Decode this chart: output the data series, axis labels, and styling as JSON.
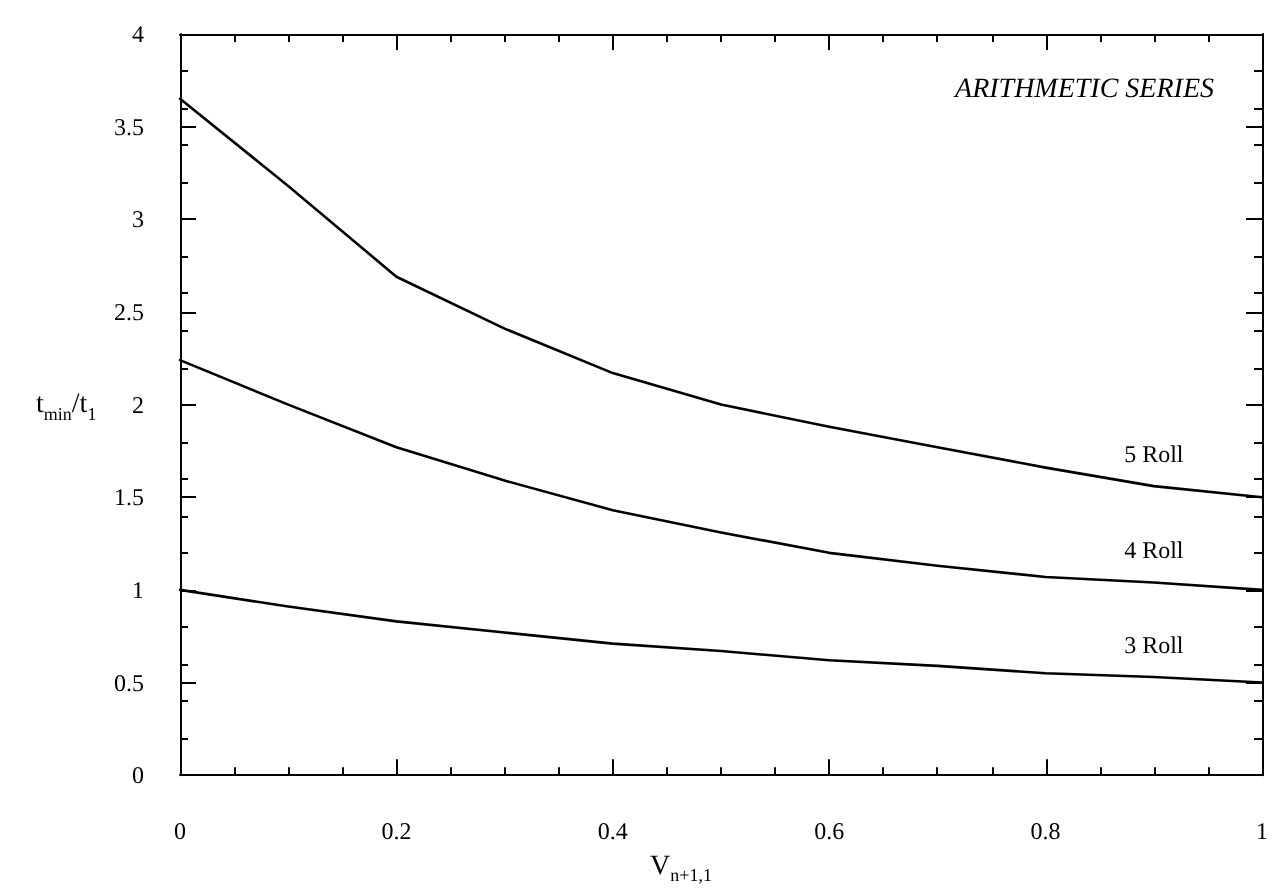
{
  "chart_data": {
    "type": "line",
    "xlabel": "V$_{n+1,1}$",
    "ylabel": "t$_{min}$/t$_{1}$",
    "annotations": [
      "ARITHMETIC SERIES"
    ],
    "x": [
      0,
      0.1,
      0.2,
      0.3,
      0.4,
      0.5,
      0.6,
      0.7,
      0.8,
      0.9,
      1
    ],
    "series": [
      {
        "name": "5 Roll",
        "color": "#000000",
        "values": [
          3.65,
          3.18,
          2.69,
          2.41,
          2.17,
          2.0,
          1.88,
          1.77,
          1.66,
          1.56,
          1.5
        ]
      },
      {
        "name": "4 Roll",
        "color": "#000000",
        "values": [
          2.24,
          2.0,
          1.77,
          1.59,
          1.43,
          1.31,
          1.2,
          1.13,
          1.07,
          1.04,
          1.0
        ]
      },
      {
        "name": "3 Roll",
        "color": "#000000",
        "values": [
          1.0,
          0.91,
          0.83,
          0.77,
          0.71,
          0.67,
          0.62,
          0.59,
          0.55,
          0.53,
          0.5
        ]
      }
    ],
    "xlim": [
      0,
      1
    ],
    "xticks": [
      0,
      0.2,
      0.4,
      0.6,
      0.8,
      1
    ],
    "ylim": [
      0,
      4
    ],
    "yticks": [
      0,
      0.5,
      1,
      1.5,
      2,
      2.5,
      3,
      3.5,
      4
    ],
    "grid": false,
    "legend": false,
    "marker": "none",
    "line_style": "solid"
  }
}
